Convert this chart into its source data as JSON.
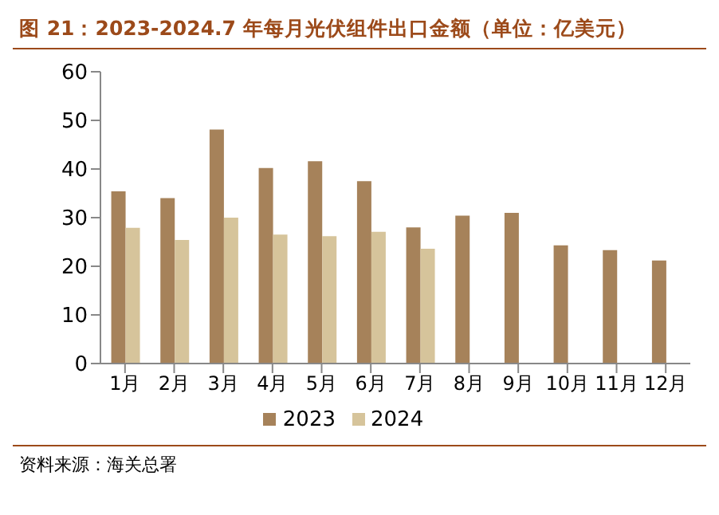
{
  "chart_data": {
    "type": "bar",
    "title": "图 21：2023-2024.7 年每月光伏组件出口金额（单位：亿美元）",
    "categories": [
      "1月",
      "2月",
      "3月",
      "4月",
      "5月",
      "6月",
      "7月",
      "8月",
      "9月",
      "10月",
      "11月",
      "12月"
    ],
    "series": [
      {
        "name": "2023",
        "color": "#a6825a",
        "values": [
          35.4,
          34.0,
          48.1,
          40.2,
          41.6,
          37.5,
          28.0,
          30.4,
          31.0,
          24.3,
          23.3,
          21.2
        ]
      },
      {
        "name": "2024",
        "color": "#d6c49b",
        "values": [
          27.9,
          25.4,
          30.0,
          26.5,
          26.2,
          27.1,
          23.6,
          null,
          null,
          null,
          null,
          null
        ]
      }
    ],
    "ylim": [
      0,
      60
    ],
    "yticks": [
      0,
      10,
      20,
      30,
      40,
      50,
      60
    ],
    "grid": false,
    "legend": "bottom",
    "annotations": [
      "资料来源：海关总署"
    ]
  }
}
